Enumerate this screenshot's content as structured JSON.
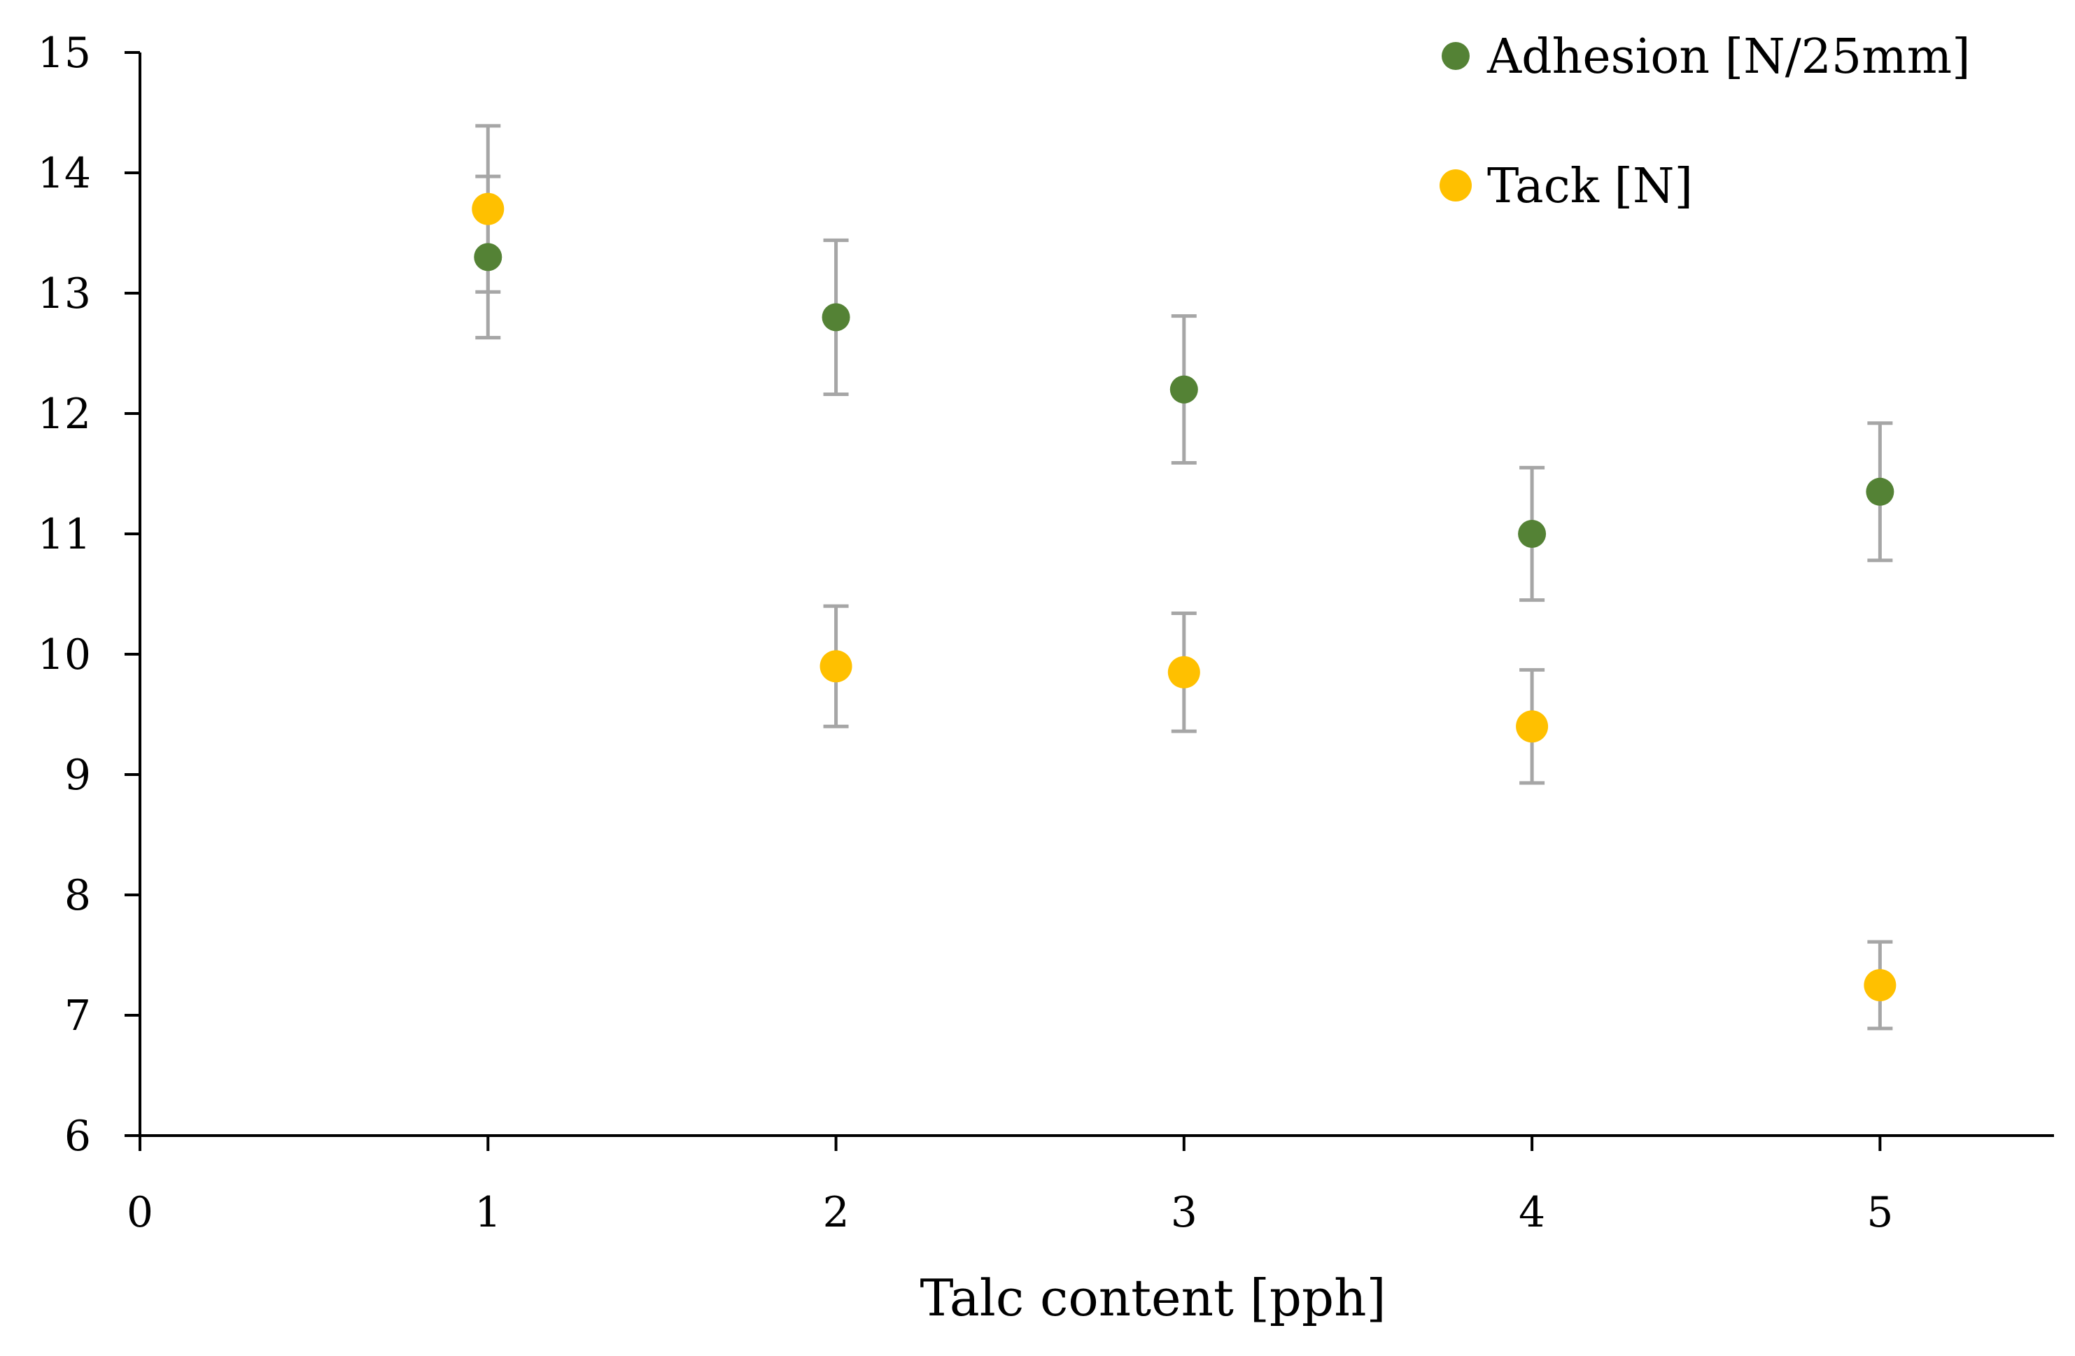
{
  "chart_data": {
    "type": "scatter",
    "title": "",
    "xlabel": "Talc content [pph]",
    "ylabel": "",
    "xlim": [
      0,
      5.5
    ],
    "ylim": [
      6,
      15
    ],
    "x_ticks": [
      0,
      1,
      2,
      3,
      4,
      5
    ],
    "y_ticks": [
      6,
      7,
      8,
      9,
      10,
      11,
      12,
      13,
      14,
      15
    ],
    "legend_position": "top-right",
    "errorbar_color": "#A6A6A6",
    "series": [
      {
        "name": "Adhesion [N/25mm]",
        "color": "#548235",
        "x": [
          1,
          2,
          3,
          4,
          5
        ],
        "y": [
          13.3,
          12.8,
          12.2,
          11.0,
          11.35
        ],
        "error": [
          0.67,
          0.64,
          0.61,
          0.55,
          0.57
        ]
      },
      {
        "name": "Tack [N]",
        "color": "#FFC000",
        "x": [
          1,
          2,
          3,
          4,
          5
        ],
        "y": [
          13.7,
          9.9,
          9.85,
          9.4,
          7.25
        ],
        "error": [
          0.69,
          0.5,
          0.49,
          0.47,
          0.36
        ]
      }
    ]
  }
}
